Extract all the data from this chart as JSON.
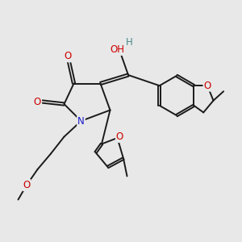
{
  "bg_color": "#e8e8e8",
  "bond_color": "#1a1a1a",
  "bond_width": 1.4,
  "atom_colors": {
    "O": "#cc0000",
    "N": "#1a1acc",
    "H": "#4a8a8a",
    "C": "#1a1a1a"
  },
  "font_size": 8.5,
  "figsize": [
    3.0,
    3.0
  ],
  "dpi": 100
}
